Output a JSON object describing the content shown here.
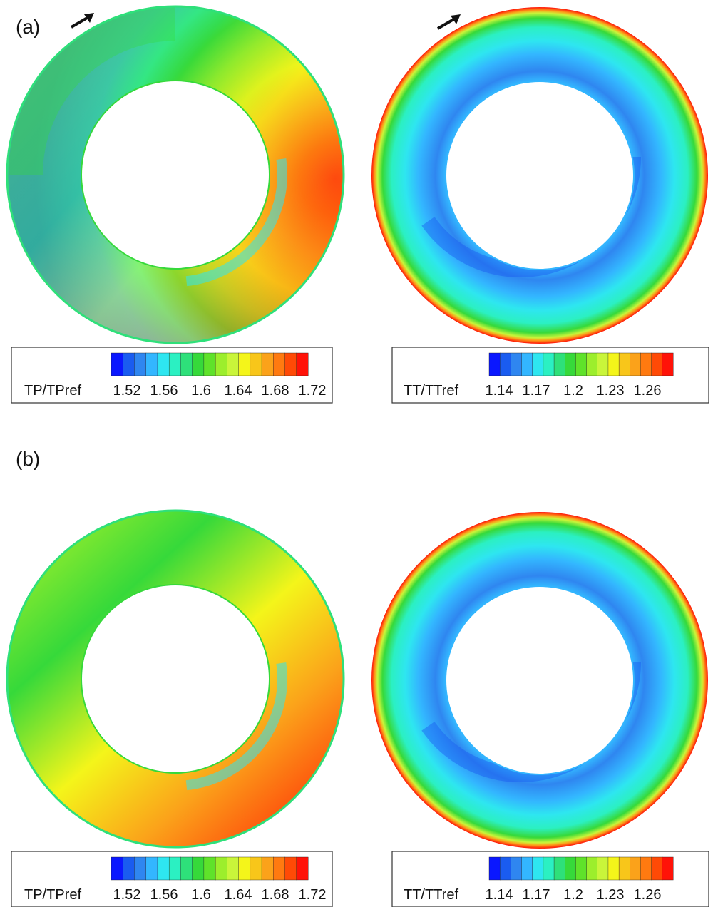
{
  "panels": [
    {
      "label": "(a)"
    },
    {
      "label": "(b)"
    }
  ],
  "palette": [
    "#0a17ff",
    "#1a5cf0",
    "#2f86f0",
    "#33b6ff",
    "#2ee6f0",
    "#2bf0c2",
    "#2ee07a",
    "#36d93a",
    "#5fe22a",
    "#9cee2c",
    "#c9f53a",
    "#f4f51a",
    "#f8c61a",
    "#fba21a",
    "#ff7a10",
    "#ff4a06",
    "#ff1208"
  ],
  "legends": {
    "tp": {
      "title": "TP/TPref",
      "ticks": [
        "1.52",
        "1.56",
        "1.6",
        "1.64",
        "1.68",
        "1.72"
      ]
    },
    "tt": {
      "title": "TT/TTref",
      "ticks": [
        "1.14",
        "1.17",
        "1.2",
        "1.23",
        "1.26"
      ]
    }
  },
  "rotation_arrow": "rotation-arrow-icon"
}
